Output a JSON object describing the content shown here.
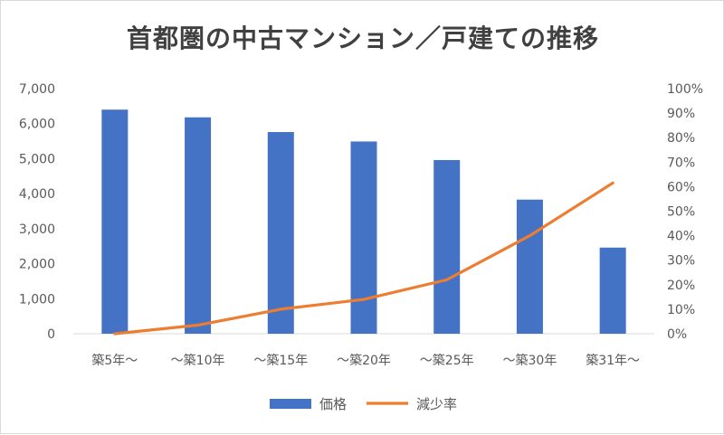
{
  "chart_data": {
    "type": "bar+line",
    "title": "首都圏の中古マンション／戸建ての推移",
    "categories": [
      "築5年〜",
      "〜築10年",
      "〜築15年",
      "〜築20年",
      "〜築25年",
      "〜築30年",
      "築31年〜"
    ],
    "series": [
      {
        "name": "価格",
        "type": "bar",
        "axis": "left",
        "color": "#4472c4",
        "values": [
          6400,
          6180,
          5760,
          5490,
          4960,
          3830,
          2460
        ]
      },
      {
        "name": "減少率",
        "type": "line",
        "axis": "right",
        "color": "#ed7d31",
        "values": [
          0.0,
          3.5,
          10.0,
          14.0,
          22.0,
          40.0,
          61.5
        ]
      }
    ],
    "y_left": {
      "min": 0,
      "max": 7000,
      "step": 1000,
      "ticks": [
        "0",
        "1,000",
        "2,000",
        "3,000",
        "4,000",
        "5,000",
        "6,000",
        "7,000"
      ]
    },
    "y_right": {
      "min": 0,
      "max": 100,
      "step": 10,
      "ticks": [
        "0%",
        "10%",
        "20%",
        "30%",
        "40%",
        "50%",
        "60%",
        "70%",
        "80%",
        "90%",
        "100%"
      ]
    },
    "grid": false,
    "legend_position": "bottom"
  }
}
